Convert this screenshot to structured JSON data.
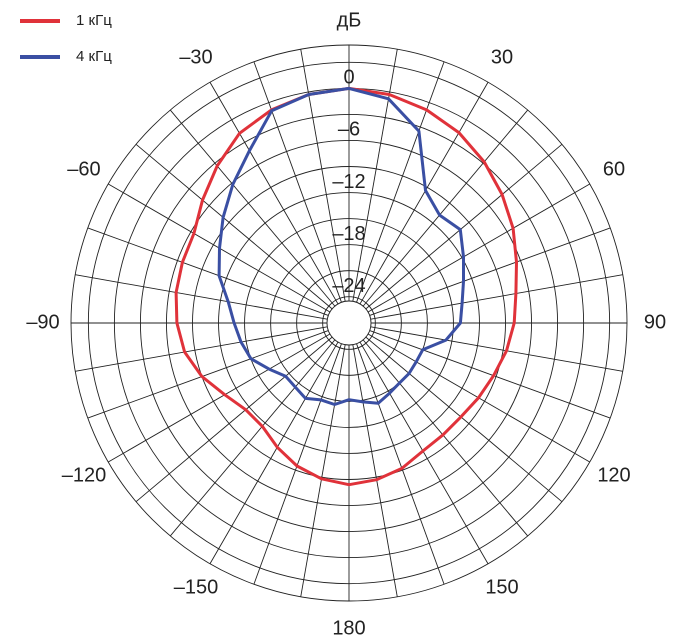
{
  "chart_data": {
    "type": "polar",
    "unit_label": "дБ",
    "theta": [
      -170,
      -160,
      -150,
      -140,
      -130,
      -120,
      -110,
      -100,
      -90,
      -80,
      -70,
      -60,
      -50,
      -40,
      -30,
      -20,
      -10,
      0,
      10,
      20,
      30,
      40,
      50,
      60,
      70,
      80,
      90,
      100,
      110,
      120,
      130,
      140,
      150,
      160,
      170,
      180
    ],
    "series": [
      {
        "name": "1 кГц",
        "color": "#e0323a",
        "values": [
          -8.8,
          -9.5,
          -10.5,
          -11.5,
          -11.5,
          -10.5,
          -9.0,
          -7.8,
          -7.2,
          -6.8,
          -6.6,
          -6.4,
          -5.0,
          -3.4,
          -1.8,
          -0.9,
          -0.3,
          0,
          -0.3,
          -0.9,
          -1.7,
          -2.8,
          -4.0,
          -5.2,
          -6.5,
          -7.5,
          -8.0,
          -8.6,
          -9.3,
          -9.8,
          -10.2,
          -10.2,
          -10.0,
          -9.2,
          -8.7,
          -8.4
        ]
      },
      {
        "name": "4 кГц",
        "color": "#3a4fa3",
        "values": [
          -17.5,
          -17.6,
          -17.0,
          -17.4,
          -17.5,
          -16.4,
          -15.0,
          -14.4,
          -13.8,
          -12.9,
          -11.1,
          -9.8,
          -8.1,
          -6.2,
          -4.1,
          -1.0,
          -0.3,
          0,
          -0.8,
          -3.5,
          -9.4,
          -10.8,
          -10.3,
          -11.8,
          -13.0,
          -13.8,
          -14.2,
          -15.7,
          -18.0,
          -18.1,
          -18.0,
          -18.0,
          -17.7,
          -17.2,
          -17.8,
          -18.2
        ]
      }
    ],
    "rlim": [
      -24.5,
      5
    ],
    "rticks": [
      {
        "value": -24,
        "label": "–24"
      },
      {
        "value": -18,
        "label": "–18"
      },
      {
        "value": -12,
        "label": "–12"
      },
      {
        "value": -6,
        "label": "–6"
      },
      0
    ],
    "rminor": [
      -21,
      -15,
      -9,
      -3,
      3
    ],
    "thetaticks": [
      {
        "value": 30,
        "label": "30"
      },
      {
        "value": 60,
        "label": "60"
      },
      {
        "value": 90,
        "label": "90"
      },
      {
        "value": 120,
        "label": "120"
      },
      {
        "value": 150,
        "label": "150"
      },
      {
        "value": 180,
        "label": "180"
      },
      {
        "value": -150,
        "label": "–150"
      },
      {
        "value": -120,
        "label": "–120"
      },
      {
        "value": -90,
        "label": "–90"
      },
      {
        "value": -60,
        "label": "–60"
      },
      {
        "value": -30,
        "label": "–30"
      }
    ],
    "spoke_step": 10,
    "legend": "top-left"
  }
}
